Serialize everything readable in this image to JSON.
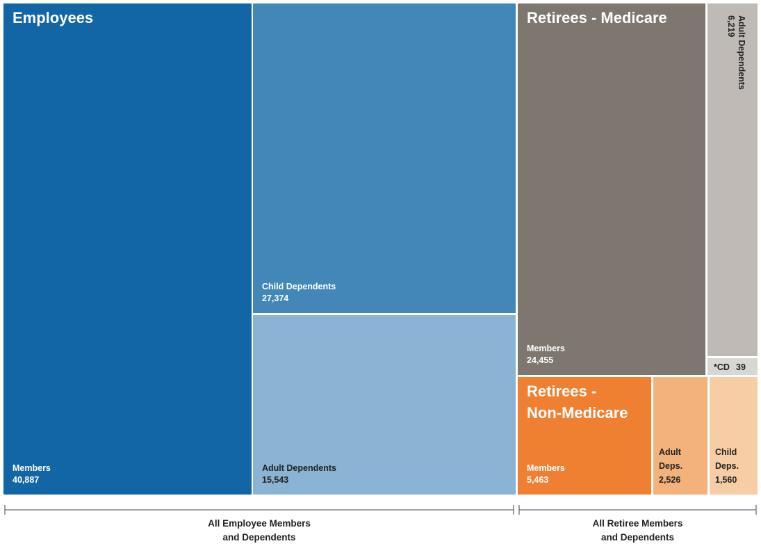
{
  "chart_data": {
    "type": "treemap",
    "series": [
      {
        "name": "Employees",
        "labels": [
          "Members",
          "Child Dependents",
          "Adult Dependents"
        ],
        "values": [
          40887,
          27374,
          15543
        ],
        "value_labels": [
          "40,887",
          "27,374",
          "15,543"
        ],
        "colors": [
          "#1366a6",
          "#4287b8",
          "#8ab3d4"
        ]
      },
      {
        "name": "Retirees - Medicare",
        "labels": [
          "Members",
          "Adult Dependents",
          "*CD"
        ],
        "values": [
          24455,
          6219,
          39
        ],
        "value_labels": [
          "24,455",
          "6,219",
          "39"
        ],
        "colors": [
          "#7d7770",
          "#bfbab5",
          "#d9d7d4"
        ]
      },
      {
        "name": "Retirees - Non-Medicare",
        "labels": [
          "Members",
          "Adult Deps.",
          "Child Deps."
        ],
        "values": [
          5463,
          2526,
          1560
        ],
        "value_labels": [
          "5,463",
          "2,526",
          "1,560"
        ],
        "colors": [
          "#ef7f31",
          "#f3b27c",
          "#f6cda4"
        ]
      }
    ],
    "brackets": [
      "All Employee Members and Dependents",
      "All Retiree Members and Dependents"
    ]
  }
}
